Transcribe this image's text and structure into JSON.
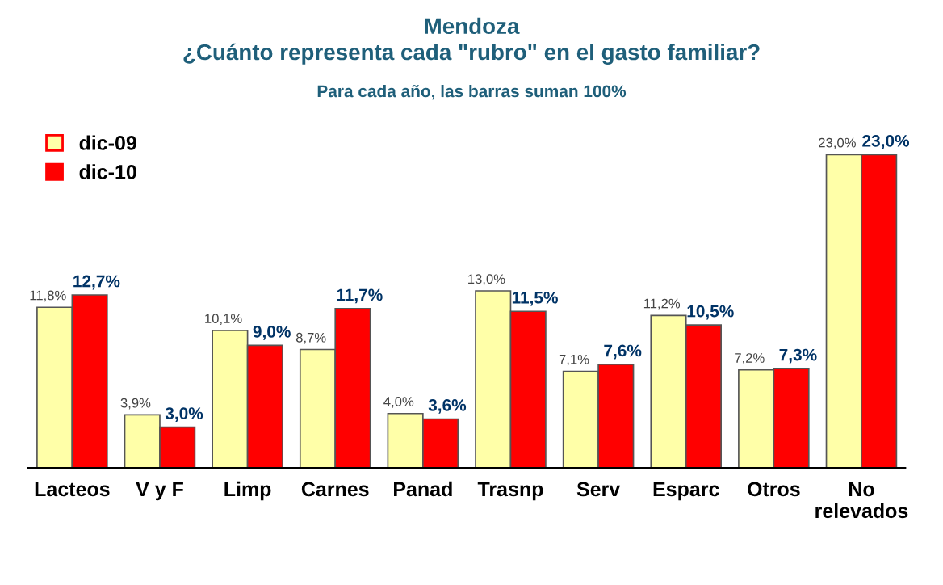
{
  "chart_data": {
    "type": "bar",
    "title": "Mendoza\n¿Cuánto representa cada \"rubro\" en el gasto familiar?",
    "subtitle": "Para cada año, las barras suman 100%",
    "categories": [
      "Lacteos",
      "V y F",
      "Limp",
      "Carnes",
      "Panad",
      "Trasnp",
      "Serv",
      "Esparc",
      "Otros",
      "No relevados"
    ],
    "series": [
      {
        "name": "dic-09",
        "color": "#ffffa8",
        "values": [
          11.8,
          3.9,
          10.1,
          8.7,
          4.0,
          13.0,
          7.1,
          11.2,
          7.2,
          23.0
        ],
        "value_labels": [
          "11,8%",
          "3,9%",
          "10,1%",
          "8,7%",
          "4,0%",
          "13,0%",
          "7,1%",
          "11,2%",
          "7,2%",
          "23,0%"
        ]
      },
      {
        "name": "dic-10",
        "color": "#ff0000",
        "values": [
          12.7,
          3.0,
          9.0,
          11.7,
          3.6,
          11.5,
          7.6,
          10.5,
          7.3,
          23.0
        ],
        "value_labels": [
          "12,7%",
          "3,0%",
          "9,0%",
          "11,7%",
          "3,6%",
          "11,5%",
          "7,6%",
          "10,5%",
          "7,3%",
          "23,0%"
        ]
      }
    ],
    "legend": "top left",
    "grid": false
  }
}
